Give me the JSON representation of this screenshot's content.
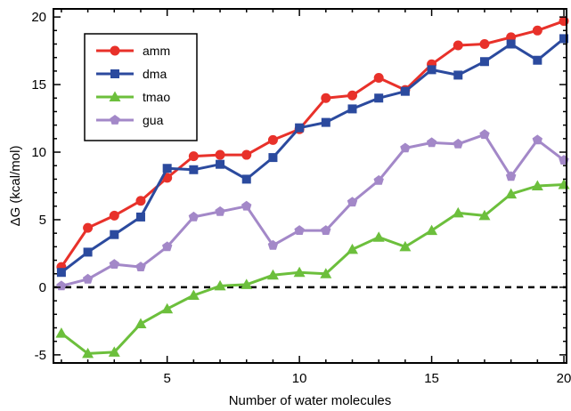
{
  "chart_data": {
    "type": "line",
    "xlabel": "Number of water molecules",
    "ylabel": "ΔG (kcal/mol)",
    "xlim": [
      0.7,
      20.1
    ],
    "ylim": [
      -5.6,
      20.6
    ],
    "xticks": [
      5,
      10,
      15,
      20
    ],
    "yticks": [
      -5,
      0,
      5,
      10,
      15,
      20
    ],
    "reference_line": {
      "y": 0,
      "style": "dashed",
      "color": "#000000"
    },
    "grid": false,
    "legend_position": "top-left",
    "x": [
      1,
      2,
      3,
      4,
      5,
      6,
      7,
      8,
      9,
      10,
      11,
      12,
      13,
      14,
      15,
      16,
      17,
      18,
      19,
      20
    ],
    "series": [
      {
        "name": "amm",
        "color": "#e8312a",
        "marker": "circle",
        "values": [
          1.5,
          4.4,
          5.3,
          6.4,
          8.1,
          9.7,
          9.8,
          9.8,
          10.9,
          11.7,
          14.0,
          14.2,
          15.5,
          14.6,
          16.5,
          17.9,
          18.0,
          18.5,
          19.0,
          19.7
        ]
      },
      {
        "name": "dma",
        "color": "#2b4a9e",
        "marker": "square",
        "values": [
          1.1,
          2.6,
          3.9,
          5.2,
          8.8,
          8.7,
          9.1,
          8.0,
          9.6,
          11.8,
          12.2,
          13.2,
          14.0,
          14.5,
          16.1,
          15.7,
          16.7,
          18.0,
          16.8,
          18.4
        ]
      },
      {
        "name": "tmao",
        "color": "#6cbf3c",
        "marker": "triangle",
        "values": [
          -3.4,
          -4.9,
          -4.8,
          -2.7,
          -1.6,
          -0.6,
          0.1,
          0.2,
          0.9,
          1.1,
          1.0,
          2.8,
          3.7,
          3.0,
          4.2,
          5.5,
          5.3,
          6.9,
          7.5,
          7.6
        ]
      },
      {
        "name": "gua",
        "color": "#a388c8",
        "marker": "pentagon",
        "values": [
          0.1,
          0.6,
          1.7,
          1.5,
          3.0,
          5.2,
          5.6,
          6.0,
          3.1,
          4.2,
          4.2,
          6.3,
          7.9,
          10.3,
          10.7,
          10.6,
          11.3,
          8.2,
          10.9,
          9.4
        ]
      }
    ]
  }
}
